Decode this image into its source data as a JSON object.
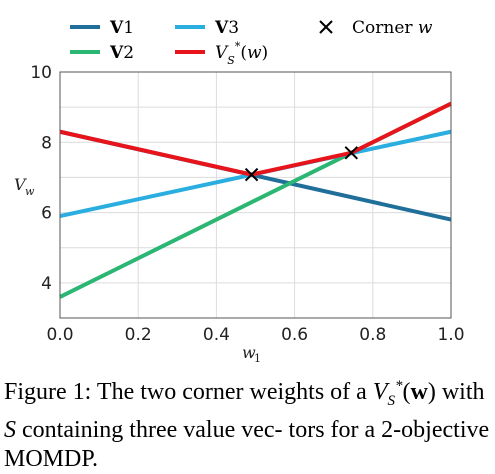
{
  "chart_data": {
    "type": "line",
    "x": [
      0.0,
      1.0
    ],
    "series": [
      {
        "name": "V1",
        "values": [
          8.3,
          5.8
        ],
        "color": "#1f6f9a"
      },
      {
        "name": "V2",
        "values": [
          3.6,
          9.1
        ],
        "color": "#2bb673"
      },
      {
        "name": "V3",
        "values": [
          5.9,
          8.3
        ],
        "color": "#2aaee0"
      },
      {
        "name": "V*S(w)",
        "values": [
          8.3,
          9.1
        ],
        "color": "#e8141c",
        "points": [
          [
            0.0,
            8.3
          ],
          [
            0.49,
            7.08
          ],
          [
            0.745,
            7.7
          ],
          [
            1.0,
            9.1
          ]
        ]
      }
    ],
    "corners": {
      "name": "Corner w",
      "points": [
        [
          0.49,
          7.08
        ],
        [
          0.745,
          7.7
        ]
      ]
    },
    "xlabel": "w1",
    "ylabel": "Vw",
    "xlim": [
      0.0,
      1.0
    ],
    "ylim": [
      3.0,
      10.0
    ],
    "xticks": [
      "0.0",
      "0.2",
      "0.4",
      "0.6",
      "0.8",
      "1.0"
    ],
    "yticks": [
      "4",
      "6",
      "8",
      "10"
    ],
    "grid": true,
    "legend_position": "top"
  },
  "caption": {
    "label": "Figure 1:",
    "text_a": "The two corner weights of a",
    "text_b": "with",
    "text_c": "containing three value vec-",
    "text_d": "tors for a 2-objective MOMDP."
  }
}
